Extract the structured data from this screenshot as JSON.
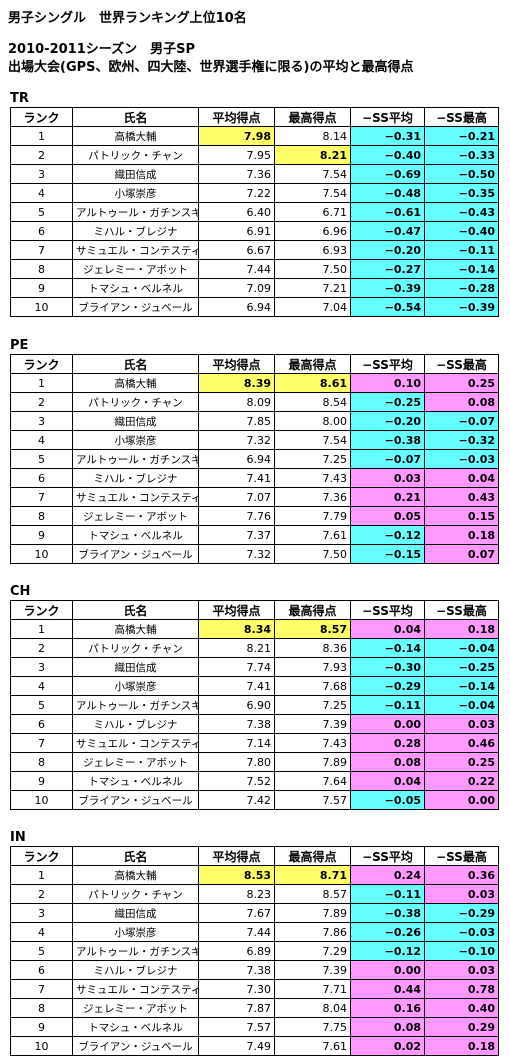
{
  "title_main": "男子シングル　世界ランキング上位10名",
  "title_season": "2010-2011シーズン　男子SP",
  "title_desc": "出場大会(GPS、欧州、四大陸、世界選手権に限る)の平均と最高得点",
  "headers": [
    "ランク",
    "氏名",
    "平均得点",
    "最高得点",
    "−SS平均",
    "−SS最高"
  ],
  "colors": {
    "highlight": "#ffff66",
    "negative": "#66ffff",
    "positive": "#ff99ff"
  },
  "sections": [
    {
      "label": "TR",
      "rows": [
        {
          "rank": "1",
          "name": "高橋大輔",
          "avg": "7.98",
          "max": "8.14",
          "ss_avg": "−0.31",
          "ss_max": "−0.21",
          "hi_avg": true,
          "hi_max": false
        },
        {
          "rank": "2",
          "name": "パトリック・チャン",
          "avg": "7.95",
          "max": "8.21",
          "ss_avg": "−0.40",
          "ss_max": "−0.33",
          "hi_avg": false,
          "hi_max": true
        },
        {
          "rank": "3",
          "name": "織田信成",
          "avg": "7.36",
          "max": "7.54",
          "ss_avg": "−0.69",
          "ss_max": "−0.50"
        },
        {
          "rank": "4",
          "name": "小塚崇彦",
          "avg": "7.22",
          "max": "7.54",
          "ss_avg": "−0.48",
          "ss_max": "−0.35"
        },
        {
          "rank": "5",
          "name": "アルトゥール・ガチンスキー",
          "avg": "6.40",
          "max": "6.71",
          "ss_avg": "−0.61",
          "ss_max": "−0.43"
        },
        {
          "rank": "6",
          "name": "ミハル・ブレジナ",
          "avg": "6.91",
          "max": "6.96",
          "ss_avg": "−0.47",
          "ss_max": "−0.40"
        },
        {
          "rank": "7",
          "name": "サミュエル・コンテスティ",
          "avg": "6.67",
          "max": "6.93",
          "ss_avg": "−0.20",
          "ss_max": "−0.11"
        },
        {
          "rank": "8",
          "name": "ジェレミー・アボット",
          "avg": "7.44",
          "max": "7.50",
          "ss_avg": "−0.27",
          "ss_max": "−0.14"
        },
        {
          "rank": "9",
          "name": "トマシュ・ベルネル",
          "avg": "7.09",
          "max": "7.21",
          "ss_avg": "−0.39",
          "ss_max": "−0.28"
        },
        {
          "rank": "10",
          "name": "ブライアン・ジュベール",
          "avg": "6.94",
          "max": "7.04",
          "ss_avg": "−0.54",
          "ss_max": "−0.39"
        }
      ]
    },
    {
      "label": "PE",
      "rows": [
        {
          "rank": "1",
          "name": "高橋大輔",
          "avg": "8.39",
          "max": "8.61",
          "ss_avg": "0.10",
          "ss_max": "0.25",
          "hi_avg": true,
          "hi_max": true
        },
        {
          "rank": "2",
          "name": "パトリック・チャン",
          "avg": "8.09",
          "max": "8.54",
          "ss_avg": "−0.25",
          "ss_max": "0.08"
        },
        {
          "rank": "3",
          "name": "織田信成",
          "avg": "7.85",
          "max": "8.00",
          "ss_avg": "−0.20",
          "ss_max": "−0.07"
        },
        {
          "rank": "4",
          "name": "小塚崇彦",
          "avg": "7.32",
          "max": "7.54",
          "ss_avg": "−0.38",
          "ss_max": "−0.32"
        },
        {
          "rank": "5",
          "name": "アルトゥール・ガチンスキー",
          "avg": "6.94",
          "max": "7.25",
          "ss_avg": "−0.07",
          "ss_max": "−0.03"
        },
        {
          "rank": "6",
          "name": "ミハル・ブレジナ",
          "avg": "7.41",
          "max": "7.43",
          "ss_avg": "0.03",
          "ss_max": "0.04"
        },
        {
          "rank": "7",
          "name": "サミュエル・コンテスティ",
          "avg": "7.07",
          "max": "7.36",
          "ss_avg": "0.21",
          "ss_max": "0.43"
        },
        {
          "rank": "8",
          "name": "ジェレミー・アボット",
          "avg": "7.76",
          "max": "7.79",
          "ss_avg": "0.05",
          "ss_max": "0.15"
        },
        {
          "rank": "9",
          "name": "トマシュ・ベルネル",
          "avg": "7.37",
          "max": "7.61",
          "ss_avg": "−0.12",
          "ss_max": "0.18"
        },
        {
          "rank": "10",
          "name": "ブライアン・ジュベール",
          "avg": "7.32",
          "max": "7.50",
          "ss_avg": "−0.15",
          "ss_max": "0.07"
        }
      ]
    },
    {
      "label": "CH",
      "rows": [
        {
          "rank": "1",
          "name": "高橋大輔",
          "avg": "8.34",
          "max": "8.57",
          "ss_avg": "0.04",
          "ss_max": "0.18",
          "hi_avg": true,
          "hi_max": true
        },
        {
          "rank": "2",
          "name": "パトリック・チャン",
          "avg": "8.21",
          "max": "8.36",
          "ss_avg": "−0.14",
          "ss_max": "−0.04"
        },
        {
          "rank": "3",
          "name": "織田信成",
          "avg": "7.74",
          "max": "7.93",
          "ss_avg": "−0.30",
          "ss_max": "−0.25"
        },
        {
          "rank": "4",
          "name": "小塚崇彦",
          "avg": "7.41",
          "max": "7.68",
          "ss_avg": "−0.29",
          "ss_max": "−0.14"
        },
        {
          "rank": "5",
          "name": "アルトゥール・ガチンスキー",
          "avg": "6.90",
          "max": "7.25",
          "ss_avg": "−0.11",
          "ss_max": "−0.04"
        },
        {
          "rank": "6",
          "name": "ミハル・ブレジナ",
          "avg": "7.38",
          "max": "7.39",
          "ss_avg": "0.00",
          "ss_max": "0.03"
        },
        {
          "rank": "7",
          "name": "サミュエル・コンテスティ",
          "avg": "7.14",
          "max": "7.43",
          "ss_avg": "0.28",
          "ss_max": "0.46"
        },
        {
          "rank": "8",
          "name": "ジェレミー・アボット",
          "avg": "7.80",
          "max": "7.89",
          "ss_avg": "0.08",
          "ss_max": "0.25"
        },
        {
          "rank": "9",
          "name": "トマシュ・ベルネル",
          "avg": "7.52",
          "max": "7.64",
          "ss_avg": "0.04",
          "ss_max": "0.22"
        },
        {
          "rank": "10",
          "name": "ブライアン・ジュベール",
          "avg": "7.42",
          "max": "7.57",
          "ss_avg": "−0.05",
          "ss_max": "0.00"
        }
      ]
    },
    {
      "label": "IN",
      "rows": [
        {
          "rank": "1",
          "name": "高橋大輔",
          "avg": "8.53",
          "max": "8.71",
          "ss_avg": "0.24",
          "ss_max": "0.36",
          "hi_avg": true,
          "hi_max": true
        },
        {
          "rank": "2",
          "name": "パトリック・チャン",
          "avg": "8.23",
          "max": "8.57",
          "ss_avg": "−0.11",
          "ss_max": "0.03"
        },
        {
          "rank": "3",
          "name": "織田信成",
          "avg": "7.67",
          "max": "7.89",
          "ss_avg": "−0.38",
          "ss_max": "−0.29"
        },
        {
          "rank": "4",
          "name": "小塚崇彦",
          "avg": "7.44",
          "max": "7.86",
          "ss_avg": "−0.26",
          "ss_max": "−0.03"
        },
        {
          "rank": "5",
          "name": "アルトゥール・ガチンスキー",
          "avg": "6.89",
          "max": "7.29",
          "ss_avg": "−0.12",
          "ss_max": "−0.10"
        },
        {
          "rank": "6",
          "name": "ミハル・ブレジナ",
          "avg": "7.38",
          "max": "7.39",
          "ss_avg": "0.00",
          "ss_max": "0.03"
        },
        {
          "rank": "7",
          "name": "サミュエル・コンテスティ",
          "avg": "7.30",
          "max": "7.71",
          "ss_avg": "0.44",
          "ss_max": "0.78"
        },
        {
          "rank": "8",
          "name": "ジェレミー・アボット",
          "avg": "7.87",
          "max": "8.04",
          "ss_avg": "0.16",
          "ss_max": "0.40"
        },
        {
          "rank": "9",
          "name": "トマシュ・ベルネル",
          "avg": "7.57",
          "max": "7.75",
          "ss_avg": "0.08",
          "ss_max": "0.29"
        },
        {
          "rank": "10",
          "name": "ブライアン・ジュベール",
          "avg": "7.49",
          "max": "7.61",
          "ss_avg": "0.02",
          "ss_max": "0.18"
        }
      ]
    }
  ]
}
